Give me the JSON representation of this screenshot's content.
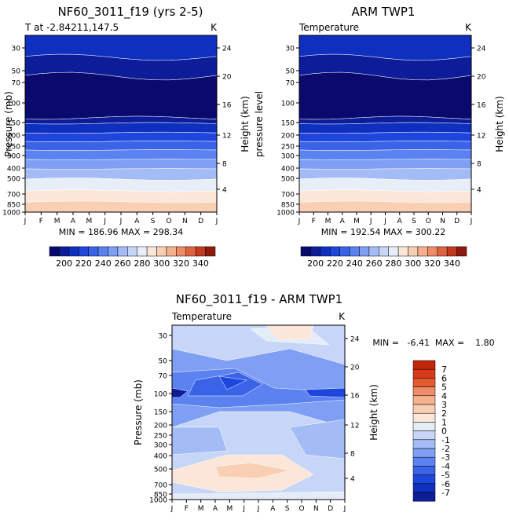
{
  "palette": [
    "#0a0a6e",
    "#0d1d9a",
    "#0f2fbf",
    "#1f46dc",
    "#3a63e8",
    "#5b82f0",
    "#7e9ff3",
    "#a3bcf5",
    "#c7d6f7",
    "#e8eef8",
    "#fbe6d8",
    "#f9cfb3",
    "#f5b08d",
    "#ee8c68",
    "#de6240",
    "#c23b1f",
    "#8f1a0e"
  ],
  "diff_palette": [
    "#0a0a6e",
    "#0d1d9a",
    "#0f2fbf",
    "#1f46dc",
    "#3a63e8",
    "#5b82f0",
    "#7e9ff3",
    "#a3bcf5",
    "#c7d6f7",
    "#e4ecf8",
    "#fbe6d8",
    "#f9cfb3",
    "#f5b08d",
    "#ee8c68",
    "#e45a2e",
    "#d63a18",
    "#c0260c",
    "#900a0a"
  ],
  "chart_data": [
    {
      "id": "model",
      "type": "contour",
      "title": "NF60_3011_f19 (yrs 2-5)",
      "subtitle_left": "T at -2.84211,147.5",
      "units": "K",
      "ylabel": "Pressure (mb)",
      "ylabel_right": "Height (km)",
      "xlabel": "",
      "x_ticks": [
        "J",
        "F",
        "M",
        "A",
        "M",
        "J",
        "J",
        "A",
        "S",
        "O",
        "N",
        "D",
        "J"
      ],
      "y_ticks": [
        "30",
        "50",
        "70",
        "100",
        "150",
        "200",
        "250",
        "300",
        "400",
        "500",
        "700",
        "850",
        "1000"
      ],
      "height_ticks": [
        "24",
        "20",
        "16",
        "12",
        "8",
        "4"
      ],
      "ylim": [
        1000,
        30
      ],
      "min_max_text": "MIN = 186.96  MAX = 298.34",
      "levels": [
        200,
        340
      ],
      "months": [
        1,
        2,
        3,
        4,
        5,
        6,
        7,
        8,
        9,
        10,
        11,
        12,
        13
      ],
      "pressure_levels": [
        30,
        50,
        70,
        100,
        150,
        200,
        250,
        300,
        400,
        500,
        700,
        850,
        1000
      ],
      "colorbar_labels": [
        "200",
        "220",
        "240",
        "260",
        "280",
        "300",
        "320",
        "340"
      ]
    },
    {
      "id": "obs",
      "type": "contour",
      "title": "ARM TWP1",
      "subtitle_left": "Temperature",
      "units": "K",
      "ylabel": "pressure level",
      "ylabel_right": "Height (km)",
      "xlabel": "",
      "x_ticks": [
        "J",
        "F",
        "M",
        "A",
        "M",
        "J",
        "J",
        "A",
        "S",
        "O",
        "N",
        "D",
        "J"
      ],
      "y_ticks": [
        "30",
        "50",
        "70",
        "100",
        "150",
        "200",
        "250",
        "300",
        "400",
        "500",
        "700",
        "850",
        "1000"
      ],
      "height_ticks": [
        "24",
        "20",
        "16",
        "12",
        "8",
        "4"
      ],
      "ylim": [
        1000,
        30
      ],
      "min_max_text": "MIN = 192.54  MAX = 300.22",
      "levels": [
        200,
        340
      ],
      "colorbar_labels": [
        "200",
        "220",
        "240",
        "260",
        "280",
        "300",
        "320",
        "340"
      ]
    },
    {
      "id": "diff",
      "type": "contour",
      "title": "NF60_3011_f19 - ARM TWP1",
      "subtitle_left": "Temperature",
      "units": "K",
      "ylabel": "Pressure (mb)",
      "ylabel_right": "Height (km)",
      "xlabel": "",
      "x_ticks": [
        "J",
        "F",
        "M",
        "A",
        "M",
        "J",
        "J",
        "A",
        "S",
        "O",
        "N",
        "D",
        "J"
      ],
      "y_ticks": [
        "30",
        "50",
        "70",
        "100",
        "150",
        "200",
        "250",
        "300",
        "400",
        "500",
        "700",
        "850",
        "1000"
      ],
      "height_ticks": [
        "24",
        "20",
        "16",
        "12",
        "8",
        "4"
      ],
      "ylim": [
        1000,
        30
      ],
      "min_max_text": "MIN =   -6.41  MAX =    1.80",
      "levels": [
        -7,
        7
      ],
      "colorbar_labels": [
        "7",
        "6",
        "5",
        "4",
        "3",
        "2",
        "1",
        "0",
        "-1",
        "-2",
        "-3",
        "-4",
        "-5",
        "-6",
        "-7"
      ]
    }
  ]
}
